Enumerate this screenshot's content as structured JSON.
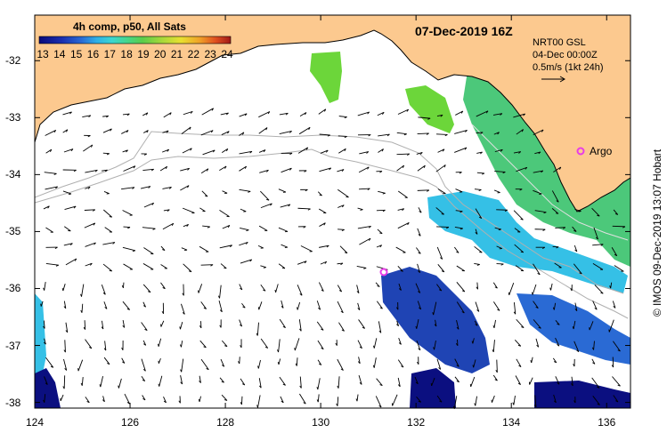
{
  "title": "07-Dec-2019 16Z",
  "colorbar": {
    "title": "4h comp, p50, All Sats",
    "ticks": [
      "13",
      "14",
      "15",
      "16",
      "17",
      "18",
      "19",
      "20",
      "21",
      "22",
      "23",
      "24"
    ],
    "colors": [
      "#0a0a7a",
      "#1b2fb0",
      "#2a6ad4",
      "#2fb0e6",
      "#3cd6d0",
      "#46d68a",
      "#5ccd4a",
      "#a6d83a",
      "#e8e030",
      "#f0a028",
      "#e05020",
      "#a01818"
    ]
  },
  "legend": {
    "line1": "NRT00 GSL",
    "line2": "04-Dec 00:00Z",
    "line3": "0.5m/s (1kt 24h)"
  },
  "markers": {
    "argo_label": "Argo",
    "color": "#e83ce8"
  },
  "axes": {
    "x_ticks": [
      "124",
      "126",
      "128",
      "130",
      "132",
      "134",
      "136"
    ],
    "y_ticks": [
      "-32",
      "-33",
      "-34",
      "-35",
      "-36",
      "-37",
      "-38"
    ],
    "lon_range": [
      124,
      136.5
    ],
    "lat_range": [
      -38.1,
      -31.2
    ]
  },
  "credit": "© IMOS 09-Dec-2019 13:07 Hobart",
  "colors": {
    "land": "#fcc98f",
    "ocean": "#ffffff",
    "sst_green": "#4cc87a",
    "sst_cyan": "#35c0e6",
    "sst_blue": "#1f44b4",
    "sst_dark": "#0b0f80",
    "sst_lime": "#6cd63a",
    "contour": "#b0b0b0"
  }
}
